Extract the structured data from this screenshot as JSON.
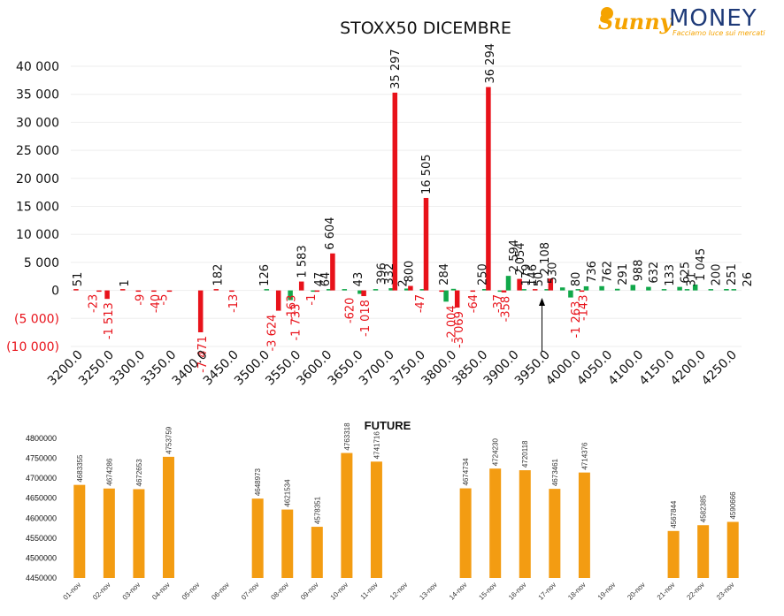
{
  "logo": {
    "brand_left": "Sunny",
    "brand_right": "MONEY",
    "tagline": "Facciamo luce sui mercati"
  },
  "colors": {
    "positive": "#11a84a",
    "negative": "#e8121a",
    "future": "#f39c12",
    "arrow": "#000000"
  },
  "chart_data": [
    {
      "type": "bar",
      "title": "STOXX50 DICEMBRE",
      "ylim": [
        -10000,
        40000
      ],
      "yticks": [
        40000,
        35000,
        30000,
        25000,
        20000,
        15000,
        10000,
        5000,
        0,
        -5000,
        -10000
      ],
      "ytick_labels": [
        "40 000",
        "35 000",
        "30 000",
        "25 000",
        "20 000",
        "15 000",
        "10 000",
        "5 000",
        "0",
        "(5 000)",
        "(10 000)"
      ],
      "grid": true,
      "x_tick_labels": [
        "3200.0",
        "3250.0",
        "3300.0",
        "3350.0",
        "3400.0",
        "3450.0",
        "3500.0",
        "3550.0",
        "3600.0",
        "3650.0",
        "3700.0",
        "3750.0",
        "3800.0",
        "3850.0",
        "3900.0",
        "3950.0",
        "4000.0",
        "4050.0",
        "4100.0",
        "4150.0",
        "4200.0",
        "4250.0"
      ],
      "categories": [
        3200,
        3225,
        3250,
        3275,
        3300,
        3325,
        3350,
        3375,
        3400,
        3425,
        3450,
        3475,
        3500,
        3525,
        3550,
        3575,
        3600,
        3625,
        3650,
        3675,
        3700,
        3725,
        3750,
        3775,
        3800,
        3825,
        3850,
        3875,
        3900,
        3925,
        3950,
        3975,
        4000,
        4025,
        4050,
        4075,
        4100,
        4125,
        4150,
        4175,
        4200,
        4225,
        4250
      ],
      "series": [
        {
          "color": "#11a84a",
          "values": [
            0,
            0,
            0,
            0,
            0,
            0,
            0,
            0,
            0,
            0,
            0,
            0,
            0,
            0,
            -1733,
            0,
            0,
            0,
            0,
            0,
            0,
            0,
            0,
            0,
            -2004,
            0,
            0,
            0,
            2594,
            146,
            0,
            0,
            -1263,
            736,
            762,
            291,
            988,
            632,
            133,
            625,
            1045,
            200,
            251
          ]
        },
        {
          "color": "#e8121a",
          "values": [
            51,
            0,
            -1513,
            1,
            -9,
            -40,
            -5,
            0,
            -7471,
            182,
            -13,
            0,
            0,
            -3624,
            0,
            0,
            0,
            0,
            0,
            0,
            0,
            0,
            0,
            0,
            0,
            0,
            0,
            0,
            0,
            0,
            0,
            0,
            0,
            0,
            0,
            0,
            0,
            0,
            0,
            0,
            0,
            0,
            0
          ]
        },
        {
          "color": "#11a84a",
          "values": [
            0,
            0,
            0,
            0,
            0,
            0,
            0,
            0,
            0,
            0,
            0,
            0,
            126,
            0,
            0,
            -1,
            47,
            64,
            -620,
            43,
            396,
            332,
            2,
            0,
            284,
            0,
            250,
            -37,
            0,
            0,
            50,
            530,
            80,
            0,
            0,
            0,
            0,
            0,
            0,
            31,
            0,
            0,
            26
          ]
        },
        {
          "color": "#e8121a",
          "values": [
            0,
            -23,
            0,
            0,
            0,
            0,
            0,
            0,
            0,
            0,
            0,
            0,
            0,
            0,
            1583,
            -163,
            6604,
            0,
            -1018,
            0,
            35297,
            800,
            16505,
            -47,
            -3069,
            -64,
            36294,
            -358,
            2054,
            179,
            2108,
            0,
            -143,
            0,
            0,
            0,
            0,
            0,
            0,
            0,
            0,
            0,
            0
          ]
        }
      ],
      "data_labels": [
        {
          "text": "51",
          "x": 3200,
          "y": 51,
          "color": "#111111"
        },
        {
          "text": "-23",
          "x": 3225,
          "y": -23,
          "color": "#e8121a"
        },
        {
          "text": "-1 513",
          "x": 3250,
          "y": -1513,
          "color": "#e8121a"
        },
        {
          "text": "1",
          "x": 3275,
          "y": 1,
          "color": "#111111"
        },
        {
          "text": "-9",
          "x": 3300,
          "y": -9,
          "color": "#e8121a"
        },
        {
          "text": "-40",
          "x": 3325,
          "y": -40,
          "color": "#e8121a"
        },
        {
          "text": "-5",
          "x": 3337,
          "y": -5,
          "color": "#e8121a"
        },
        {
          "text": "-7 471",
          "x": 3400,
          "y": -7471,
          "color": "#e8121a"
        },
        {
          "text": "182",
          "x": 3425,
          "y": 182,
          "color": "#111111"
        },
        {
          "text": "-13",
          "x": 3450,
          "y": -13,
          "color": "#e8121a"
        },
        {
          "text": "126",
          "x": 3500,
          "y": 126,
          "color": "#111111"
        },
        {
          "text": "-3 624",
          "x": 3512,
          "y": -3624,
          "color": "#e8121a"
        },
        {
          "text": "-1 733",
          "x": 3550,
          "y": -1733,
          "color": "#e8121a"
        },
        {
          "text": "1 583",
          "x": 3560,
          "y": 1583,
          "color": "#111111"
        },
        {
          "text": "-163",
          "x": 3543,
          "y": -163,
          "color": "#e8121a"
        },
        {
          "text": "-1",
          "x": 3575,
          "y": -1,
          "color": "#e8121a"
        },
        {
          "text": "47",
          "x": 3588,
          "y": 47,
          "color": "#111111"
        },
        {
          "text": "64",
          "x": 3598,
          "y": 64,
          "color": "#111111"
        },
        {
          "text": "6 604",
          "x": 3605,
          "y": 6604,
          "color": "#111111"
        },
        {
          "text": "-620",
          "x": 3637,
          "y": -620,
          "color": "#e8121a"
        },
        {
          "text": "43",
          "x": 3650,
          "y": 43,
          "color": "#111111"
        },
        {
          "text": "-1 018",
          "x": 3662,
          "y": -1018,
          "color": "#e8121a"
        },
        {
          "text": "396",
          "x": 3688,
          "y": 396,
          "color": "#111111"
        },
        {
          "text": "332",
          "x": 3700,
          "y": 332,
          "color": "#111111"
        },
        {
          "text": "35 297",
          "x": 3710,
          "y": 35297,
          "color": "#111111"
        },
        {
          "text": "2",
          "x": 3722,
          "y": 2,
          "color": "#111111"
        },
        {
          "text": "800",
          "x": 3732,
          "y": 800,
          "color": "#111111"
        },
        {
          "text": "-47",
          "x": 3750,
          "y": -47,
          "color": "#e8121a"
        },
        {
          "text": "16 505",
          "x": 3760,
          "y": 16505,
          "color": "#111111"
        },
        {
          "text": "284",
          "x": 3788,
          "y": 284,
          "color": "#111111"
        },
        {
          "text": "-2 004",
          "x": 3800,
          "y": -2004,
          "color": "#e8121a"
        },
        {
          "text": "-3 069",
          "x": 3812,
          "y": -3069,
          "color": "#e8121a"
        },
        {
          "text": "-64",
          "x": 3835,
          "y": -64,
          "color": "#e8121a"
        },
        {
          "text": "250",
          "x": 3850,
          "y": 250,
          "color": "#111111"
        },
        {
          "text": "36 294",
          "x": 3862,
          "y": 36294,
          "color": "#111111"
        },
        {
          "text": "-37",
          "x": 3875,
          "y": -37,
          "color": "#e8121a"
        },
        {
          "text": "-358",
          "x": 3887,
          "y": -358,
          "color": "#e8121a"
        },
        {
          "text": "2 594",
          "x": 3900,
          "y": 2594,
          "color": "#111111"
        },
        {
          "text": "2 054",
          "x": 3910,
          "y": 2054,
          "color": "#111111"
        },
        {
          "text": "179",
          "x": 3920,
          "y": 179,
          "color": "#111111"
        },
        {
          "text": "146",
          "x": 3930,
          "y": 146,
          "color": "#111111"
        },
        {
          "text": "50",
          "x": 3940,
          "y": 50,
          "color": "#111111"
        },
        {
          "text": "2 108",
          "x": 3950,
          "y": 2108,
          "color": "#111111"
        },
        {
          "text": "530",
          "x": 3962,
          "y": 530,
          "color": "#111111"
        },
        {
          "text": "80",
          "x": 4000,
          "y": 80,
          "color": "#111111"
        },
        {
          "text": "-143",
          "x": 4012,
          "y": -143,
          "color": "#e8121a"
        },
        {
          "text": "-1 263",
          "x": 4000,
          "y": -1263,
          "color": "#e8121a"
        },
        {
          "text": "736",
          "x": 4025,
          "y": 736,
          "color": "#111111"
        },
        {
          "text": "762",
          "x": 4050,
          "y": 762,
          "color": "#111111"
        },
        {
          "text": "291",
          "x": 4075,
          "y": 291,
          "color": "#111111"
        },
        {
          "text": "988",
          "x": 4100,
          "y": 988,
          "color": "#111111"
        },
        {
          "text": "632",
          "x": 4125,
          "y": 632,
          "color": "#111111"
        },
        {
          "text": "133",
          "x": 4150,
          "y": 133,
          "color": "#111111"
        },
        {
          "text": "625",
          "x": 4175,
          "y": 625,
          "color": "#111111"
        },
        {
          "text": "31",
          "x": 4185,
          "y": 31,
          "color": "#111111"
        },
        {
          "text": "1 045",
          "x": 4200,
          "y": 1045,
          "color": "#111111"
        },
        {
          "text": "200",
          "x": 4225,
          "y": 200,
          "color": "#111111"
        },
        {
          "text": "251",
          "x": 4250,
          "y": 251,
          "color": "#111111"
        },
        {
          "text": "26",
          "x": 4275,
          "y": 26,
          "color": "#111111"
        }
      ],
      "arrow_at": 3945
    },
    {
      "type": "bar",
      "title": "FUTURE",
      "ylim": [
        4450000,
        4800000
      ],
      "yticks": [
        4800000,
        4750000,
        4700000,
        4650000,
        4600000,
        4550000,
        4500000,
        4450000
      ],
      "categories": [
        "01-nov",
        "02-nov",
        "03-nov",
        "04-nov",
        "05-nov",
        "06-nov",
        "07-nov",
        "08-nov",
        "09-nov",
        "10-nov",
        "11-nov",
        "12-nov",
        "13-nov",
        "14-nov",
        "15-nov",
        "16-nov",
        "17-nov",
        "18-nov",
        "19-nov",
        "20-nov",
        "21-nov",
        "22-nov",
        "23-nov"
      ],
      "values": [
        4683355,
        4674286,
        4672653,
        4753759,
        null,
        null,
        4648973,
        4621534,
        4578351,
        4763318,
        4741716,
        null,
        null,
        4674734,
        4724230,
        4720118,
        4673461,
        4714376,
        null,
        null,
        4567844,
        4582385,
        4590666
      ],
      "labels": [
        "4683355",
        "4674286",
        "4672653",
        "4753759",
        "",
        "",
        "4648973",
        "4621534",
        "4578351",
        "4763318",
        "4741716",
        "",
        "",
        "4674734",
        "4724230",
        "4720118",
        "4673461",
        "4714376",
        "",
        "",
        "4567844",
        "4582385",
        "4590666"
      ]
    }
  ]
}
